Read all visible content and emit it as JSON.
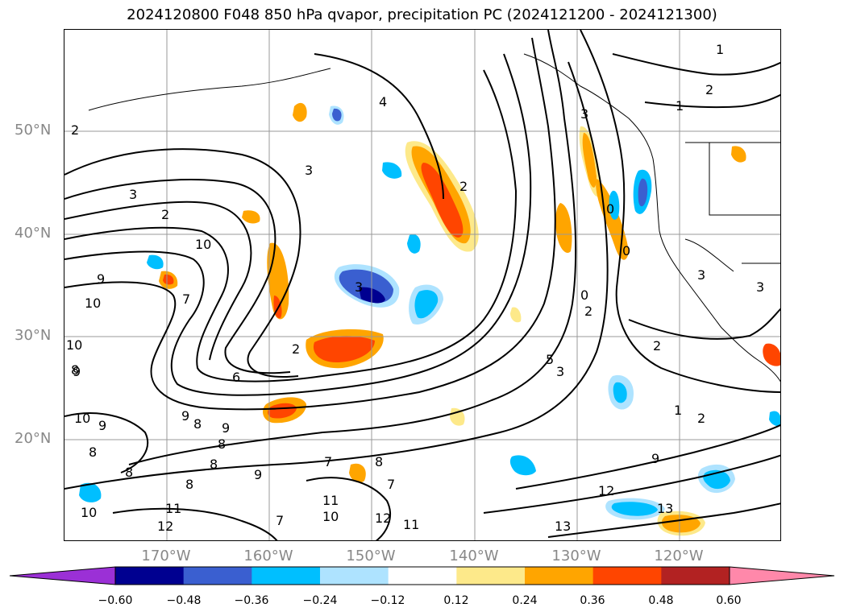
{
  "title": "2024120800 F048 850 hPa qvapor, precipitation PC (2024121200 - 2024121300)",
  "lat_labels": [
    "50°N",
    "40°N",
    "30°N",
    "20°N"
  ],
  "lon_labels": [
    "170°W",
    "160°W",
    "150°W",
    "140°W",
    "130°W",
    "120°W"
  ],
  "colorbar": {
    "ticks": [
      "−0.60",
      "−0.48",
      "−0.36",
      "−0.24",
      "−0.12",
      "0.12",
      "0.24",
      "0.36",
      "0.48",
      "0.60"
    ],
    "colors": [
      "#9b30d6",
      "#000090",
      "#3a5fd0",
      "#00bfff",
      "#aee3ff",
      "#ffffff",
      "#fde98a",
      "#ffa500",
      "#ff4500",
      "#b22222",
      "#ff88aa"
    ]
  },
  "contour_labels": [
    "1",
    "2",
    "2",
    "4",
    "3",
    "3",
    "2",
    "2",
    "10",
    "9",
    "10",
    "10",
    "9",
    "8",
    "10",
    "9",
    "8",
    "9",
    "8",
    "8",
    "8",
    "9",
    "7",
    "8",
    "11",
    "10",
    "11",
    "12",
    "11",
    "12",
    "13",
    "13",
    "12",
    "9",
    "2",
    "1",
    "5",
    "3",
    "0",
    "0",
    "0",
    "2",
    "3",
    "3",
    "6",
    "2",
    "7",
    "3",
    "10",
    "7",
    "7",
    "8",
    "8",
    "9",
    "3",
    "1",
    "2"
  ]
}
